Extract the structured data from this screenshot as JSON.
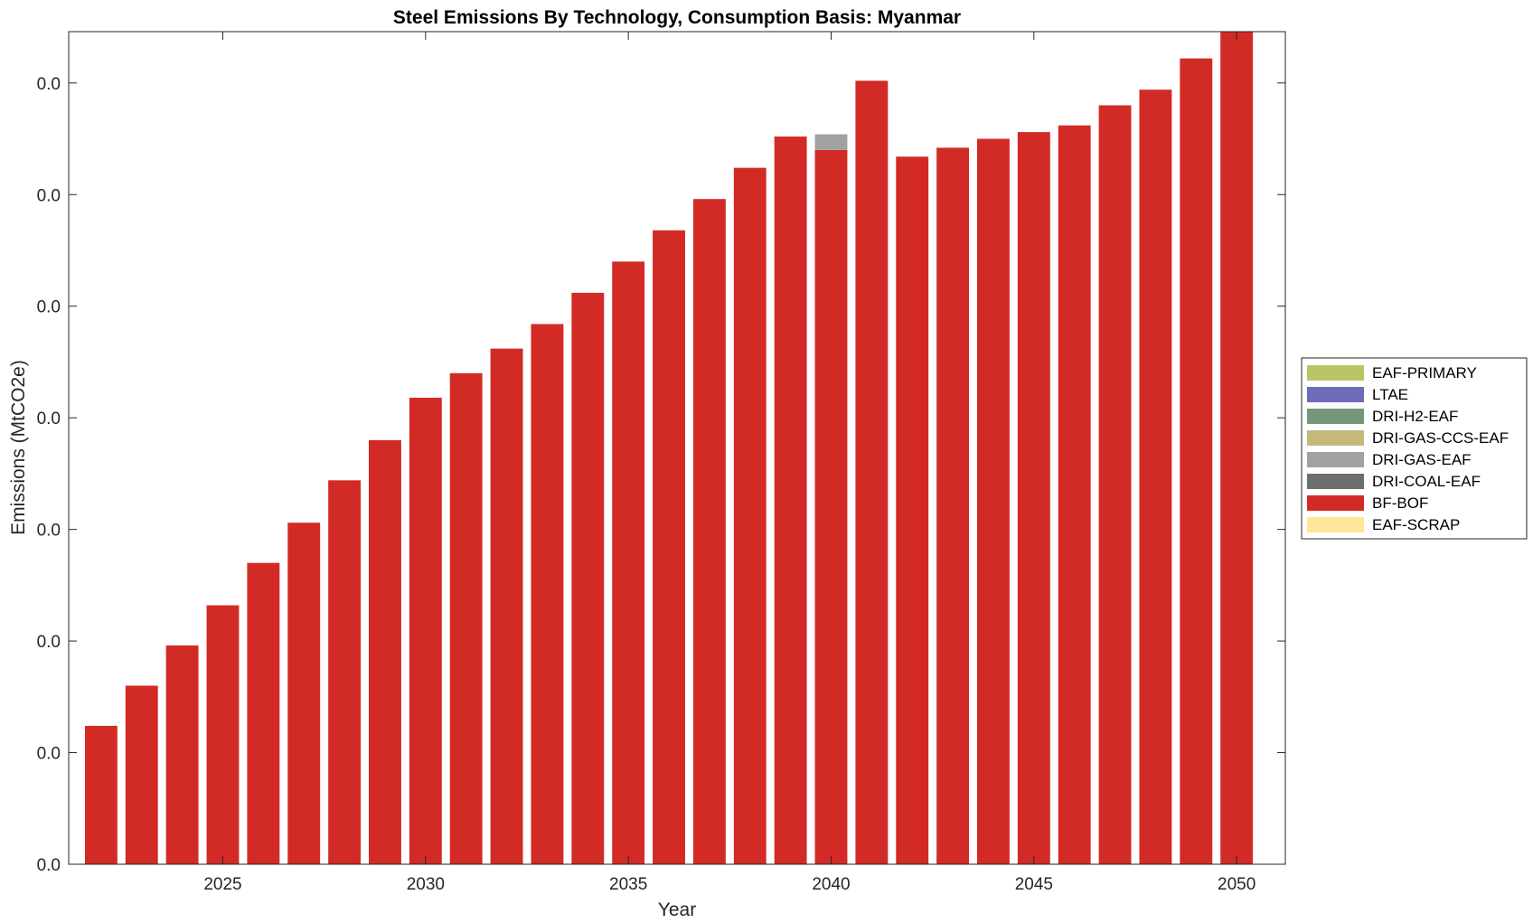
{
  "chart_data": {
    "type": "bar",
    "stacked": true,
    "title": "Steel Emissions By Technology, Consumption Basis: Myanmar",
    "xlabel": "Year",
    "ylabel": "Emissions (MtCO2e)",
    "x": [
      2022,
      2023,
      2024,
      2025,
      2026,
      2027,
      2028,
      2029,
      2030,
      2031,
      2032,
      2033,
      2034,
      2035,
      2036,
      2037,
      2038,
      2039,
      2040,
      2041,
      2042,
      2043,
      2044,
      2045,
      2046,
      2047,
      2048,
      2049,
      2050
    ],
    "xlim": [
      2021.2,
      2051.2
    ],
    "ylim": [
      0,
      0.0373
    ],
    "x_ticks": [
      2025,
      2030,
      2035,
      2040,
      2045,
      2050
    ],
    "x_tick_labels": [
      "2025",
      "2030",
      "2035",
      "2040",
      "2045",
      "2050"
    ],
    "y_ticks": [
      0,
      0.005,
      0.01,
      0.015,
      0.02,
      0.025,
      0.03,
      0.035
    ],
    "y_tick_labels": [
      "0.0",
      "0.0",
      "0.0",
      "0.0",
      "0.0",
      "0.0",
      "0.0",
      "0.0"
    ],
    "grid": false,
    "legend_position": "outside-right",
    "series": [
      {
        "name": "EAF-SCRAP",
        "color": "#FFE699",
        "values": [
          0,
          0,
          0,
          0,
          0,
          0,
          0,
          0,
          0,
          0,
          0,
          0,
          0,
          0,
          0,
          0,
          0,
          0,
          0,
          0,
          0,
          0,
          0,
          0,
          0,
          0,
          0,
          0,
          0
        ]
      },
      {
        "name": "BF-BOF",
        "color": "#D22B26",
        "values": [
          0.0062,
          0.008,
          0.0098,
          0.0116,
          0.0135,
          0.0153,
          0.0172,
          0.019,
          0.0209,
          0.022,
          0.0231,
          0.0242,
          0.0256,
          0.027,
          0.0284,
          0.0298,
          0.0312,
          0.0326,
          0.032,
          0.0351,
          0.0317,
          0.0321,
          0.0325,
          0.0328,
          0.0331,
          0.034,
          0.0347,
          0.0361,
          0.0373
        ]
      },
      {
        "name": "DRI-COAL-EAF",
        "color": "#6E6E6E",
        "values": [
          0,
          0,
          0,
          0,
          0,
          0,
          0,
          0,
          0,
          0,
          0,
          0,
          0,
          0,
          0,
          0,
          0,
          0,
          0,
          0,
          0,
          0,
          0,
          0,
          0,
          0,
          0,
          0,
          0
        ]
      },
      {
        "name": "DRI-GAS-EAF",
        "color": "#A1A1A1",
        "values": [
          0,
          0,
          0,
          0,
          0,
          0,
          0,
          0,
          0,
          0,
          0,
          0,
          0,
          0,
          0,
          0,
          0,
          0,
          0.0007,
          0,
          0,
          0,
          0,
          0,
          0,
          0,
          0,
          0,
          0
        ]
      },
      {
        "name": "DRI-GAS-CCS-EAF",
        "color": "#C3BA7A",
        "values": [
          0,
          0,
          0,
          0,
          0,
          0,
          0,
          0,
          0,
          0,
          0,
          0,
          0,
          0,
          0,
          0,
          0,
          0,
          0,
          0,
          0,
          0,
          0,
          0,
          0,
          0,
          0,
          0,
          0
        ]
      },
      {
        "name": "DRI-H2-EAF",
        "color": "#76967A",
        "values": [
          0,
          0,
          0,
          0,
          0,
          0,
          0,
          0,
          0,
          0,
          0,
          0,
          0,
          0,
          0,
          0,
          0,
          0,
          0,
          0,
          0,
          0,
          0,
          0,
          0,
          0,
          0,
          0,
          0
        ]
      },
      {
        "name": "LTAE",
        "color": "#6E6BBB",
        "values": [
          0,
          0,
          0,
          0,
          0,
          0,
          0,
          0,
          0,
          0,
          0,
          0,
          0,
          0,
          0,
          0,
          0,
          0,
          0,
          0,
          0,
          0,
          0,
          0,
          0,
          0,
          0,
          0,
          0
        ]
      },
      {
        "name": "EAF-PRIMARY",
        "color": "#BAC464",
        "values": [
          0,
          0,
          0,
          0,
          0,
          0,
          0,
          0,
          0,
          0,
          0,
          0,
          0,
          0,
          0,
          0,
          0,
          0,
          0,
          0,
          0,
          0,
          0,
          0,
          0,
          0,
          0,
          0,
          0
        ]
      }
    ],
    "legend_order": [
      "EAF-PRIMARY",
      "LTAE",
      "DRI-H2-EAF",
      "DRI-GAS-CCS-EAF",
      "DRI-GAS-EAF",
      "DRI-COAL-EAF",
      "BF-BOF",
      "EAF-SCRAP"
    ]
  }
}
